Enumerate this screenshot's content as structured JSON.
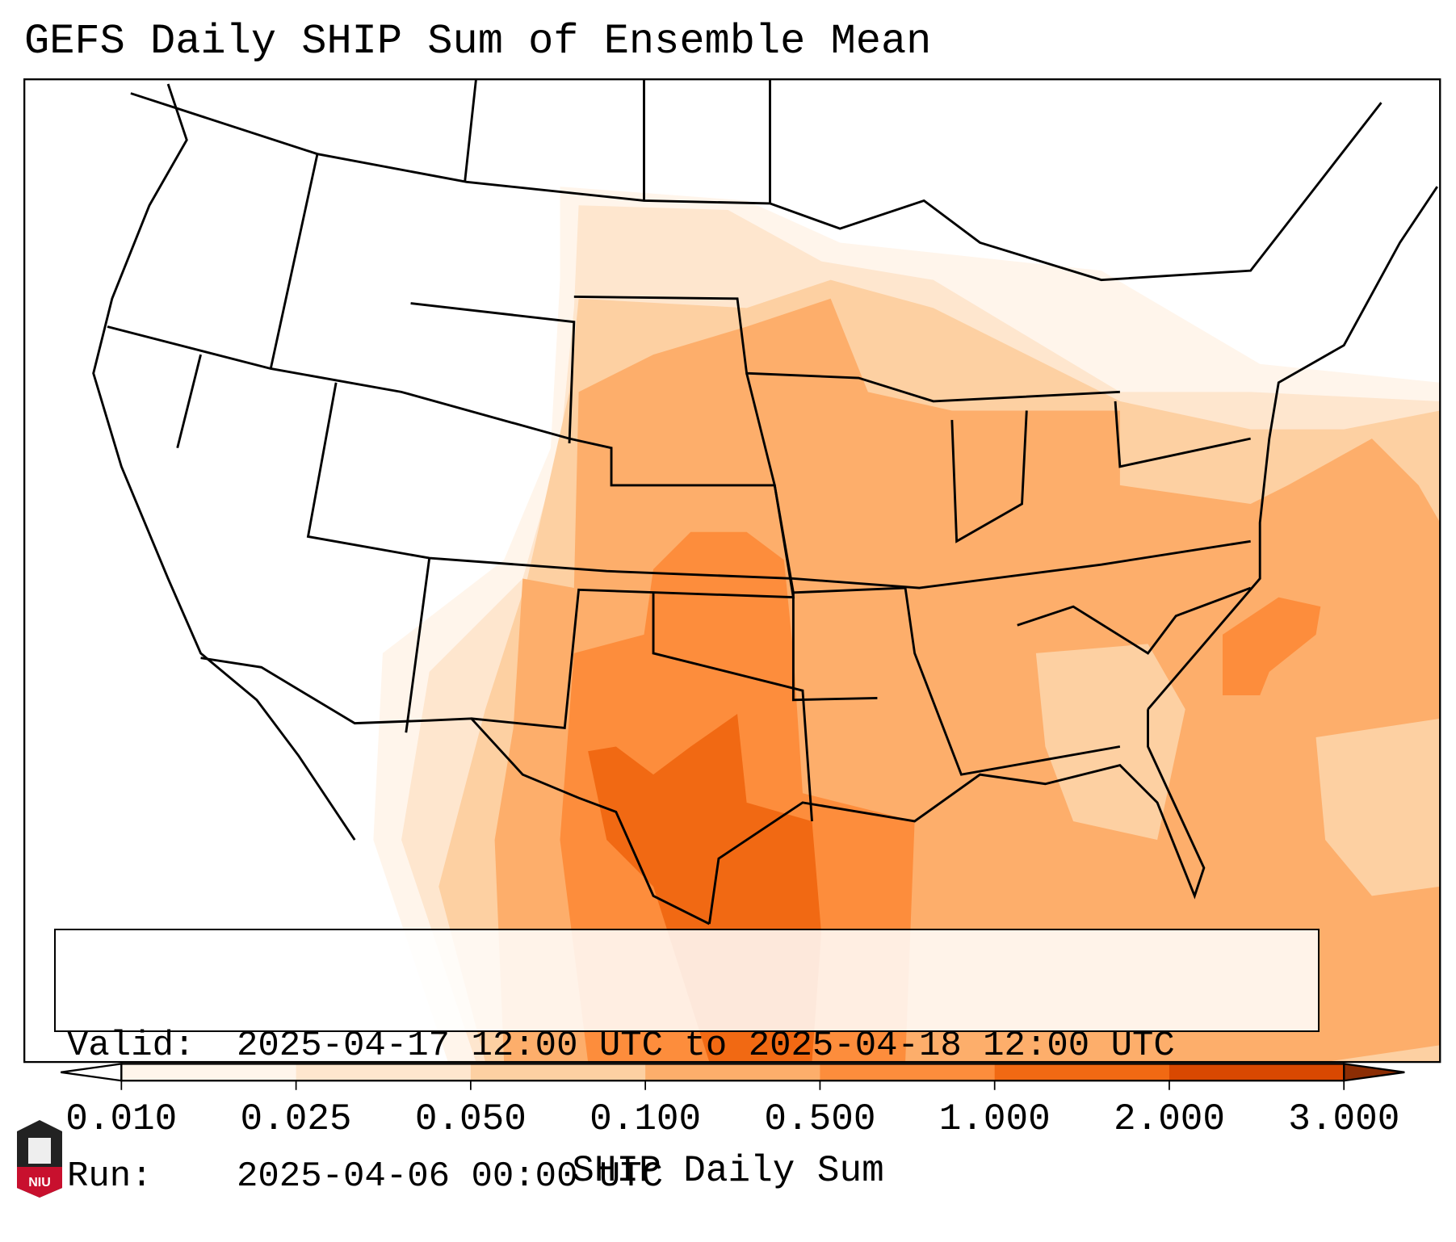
{
  "title": "GEFS Daily SHIP Sum of Ensemble Mean",
  "info": {
    "valid_label": "Valid:",
    "valid_value": "2025-04-17 12:00 UTC to 2025-04-18 12:00 UTC",
    "run_label": "Run:",
    "run_value": "2025-04-06 00:00 UTC"
  },
  "colorbar": {
    "label": "SHIP Daily Sum",
    "ticks": [
      "0.010",
      "0.025",
      "0.050",
      "0.100",
      "0.500",
      "1.000",
      "2.000",
      "3.000"
    ],
    "colors": [
      "#fff5eb",
      "#fee6ce",
      "#fdd0a2",
      "#fdae6b",
      "#fd8d3c",
      "#f16913",
      "#d94801"
    ],
    "under_color": "#ffffff",
    "over_color": "#8c2d04"
  },
  "logo": {
    "text": "NIU"
  }
}
